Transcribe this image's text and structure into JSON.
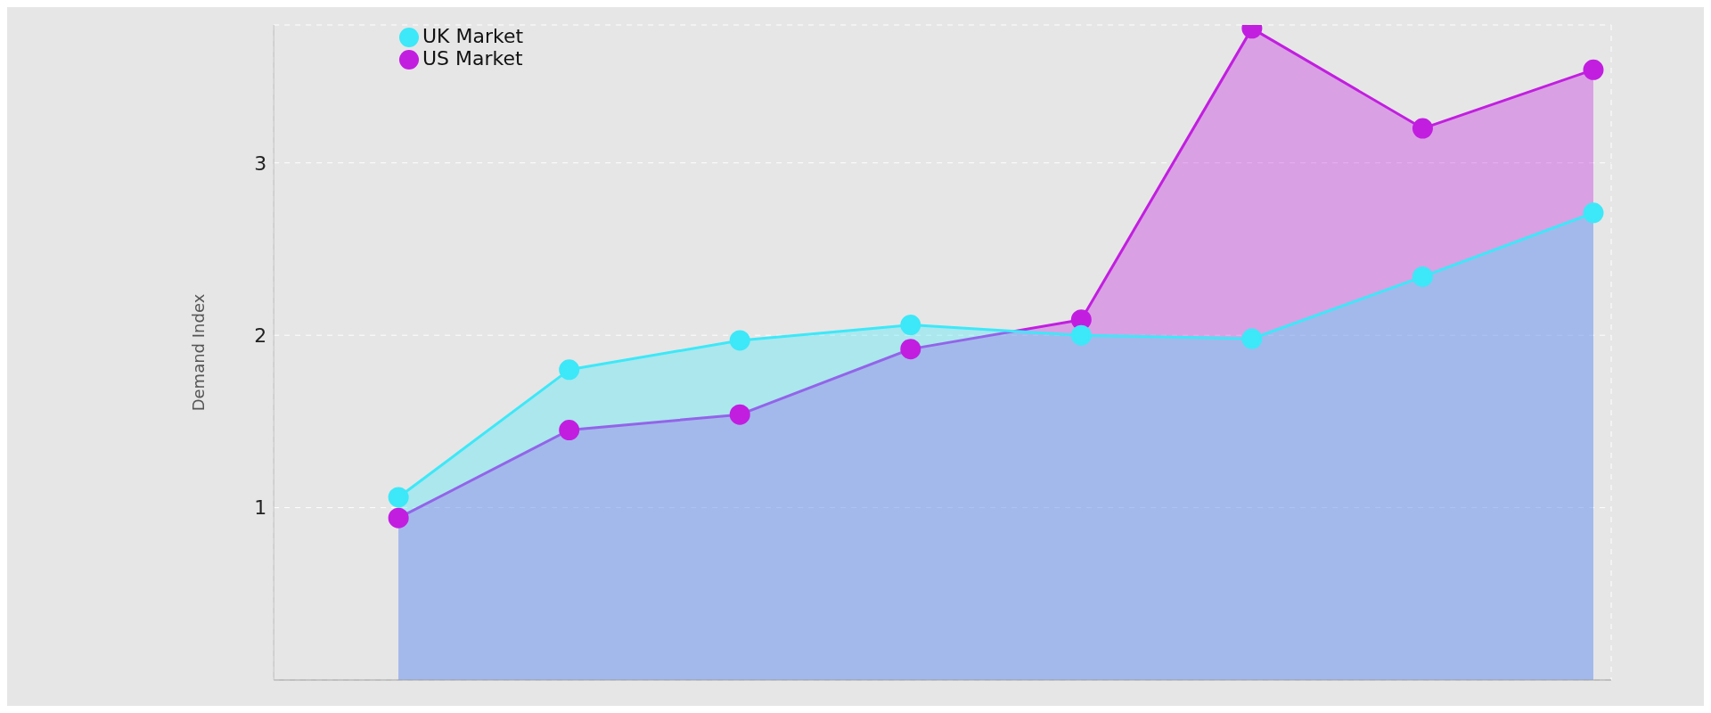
{
  "chart_data": {
    "type": "area",
    "ylabel": "Demand Index",
    "categories": [
      null,
      null,
      null,
      null,
      null,
      null,
      null,
      null
    ],
    "series": [
      {
        "name": "US Market",
        "color": "#c21ee0",
        "values": [
          0.94,
          1.45,
          1.54,
          1.92,
          2.09,
          3.78,
          3.2,
          3.54
        ]
      },
      {
        "name": "UK Market",
        "color": "#3de8f8",
        "values": [
          1.06,
          1.8,
          1.97,
          2.06,
          2.0,
          1.98,
          2.34,
          2.71
        ]
      }
    ],
    "ylim": [
      0,
      3.8
    ],
    "yticks": [
      1,
      2,
      3
    ],
    "grid": true,
    "legend": "top left",
    "marker": "circle",
    "tick_labels": "y"
  }
}
